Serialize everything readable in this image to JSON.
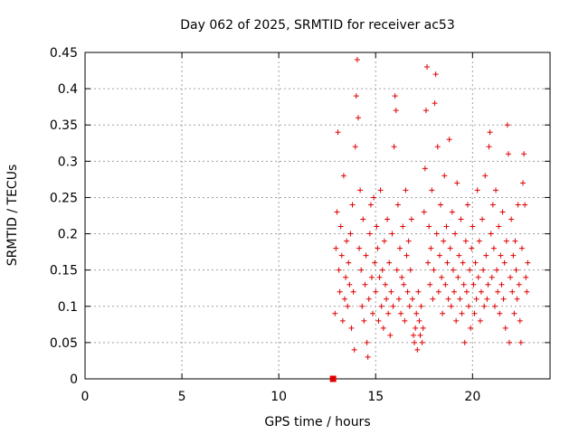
{
  "chart_data": {
    "type": "scatter",
    "title": "Day 062 of 2025, SRMTID for receiver ac53",
    "xlabel": "GPS time / hours",
    "ylabel": "SRMTID / TECUs",
    "xlim": [
      0,
      24
    ],
    "ylim": [
      0,
      0.45
    ],
    "xticks": [
      0,
      5,
      10,
      15,
      20
    ],
    "xtick_labels": [
      "0",
      "5",
      "10",
      "15",
      "20"
    ],
    "yticks": [
      0,
      0.05,
      0.1,
      0.15,
      0.2,
      0.25,
      0.3,
      0.35,
      0.4,
      0.45
    ],
    "ytick_labels": [
      "0",
      "0.05",
      "0.1",
      "0.15",
      "0.2",
      "0.25",
      "0.3",
      "0.35",
      "0.4",
      "0.45"
    ],
    "grid": true,
    "marker": "+",
    "color": "#e00000",
    "gap_marker": {
      "x": 12.8,
      "y": 0
    },
    "series": [
      {
        "name": "SRMTID",
        "points": [
          [
            12.9,
            0.09
          ],
          [
            12.95,
            0.18
          ],
          [
            13.0,
            0.23
          ],
          [
            13.05,
            0.34
          ],
          [
            13.1,
            0.15
          ],
          [
            13.15,
            0.12
          ],
          [
            13.2,
            0.21
          ],
          [
            13.25,
            0.17
          ],
          [
            13.3,
            0.08
          ],
          [
            13.35,
            0.28
          ],
          [
            13.4,
            0.11
          ],
          [
            13.45,
            0.14
          ],
          [
            13.5,
            0.19
          ],
          [
            13.55,
            0.1
          ],
          [
            13.6,
            0.16
          ],
          [
            13.65,
            0.13
          ],
          [
            13.7,
            0.2
          ],
          [
            13.75,
            0.07
          ],
          [
            13.8,
            0.24
          ],
          [
            13.85,
            0.12
          ],
          [
            13.9,
            0.04
          ],
          [
            13.95,
            0.32
          ],
          [
            14.0,
            0.39
          ],
          [
            14.05,
            0.44
          ],
          [
            14.1,
            0.36
          ],
          [
            14.15,
            0.18
          ],
          [
            14.2,
            0.26
          ],
          [
            14.25,
            0.15
          ],
          [
            14.3,
            0.1
          ],
          [
            14.35,
            0.22
          ],
          [
            14.4,
            0.08
          ],
          [
            14.45,
            0.13
          ],
          [
            14.5,
            0.17
          ],
          [
            14.55,
            0.05
          ],
          [
            14.6,
            0.03
          ],
          [
            14.65,
            0.11
          ],
          [
            14.7,
            0.2
          ],
          [
            14.75,
            0.24
          ],
          [
            14.8,
            0.14
          ],
          [
            14.85,
            0.09
          ],
          [
            14.9,
            0.25
          ],
          [
            14.95,
            0.16
          ],
          [
            15.0,
            0.12
          ],
          [
            15.05,
            0.21
          ],
          [
            15.1,
            0.18
          ],
          [
            15.15,
            0.08
          ],
          [
            15.2,
            0.14
          ],
          [
            15.25,
            0.26
          ],
          [
            15.3,
            0.1
          ],
          [
            15.35,
            0.15
          ],
          [
            15.4,
            0.07
          ],
          [
            15.45,
            0.19
          ],
          [
            15.5,
            0.13
          ],
          [
            15.55,
            0.11
          ],
          [
            15.6,
            0.22
          ],
          [
            15.65,
            0.09
          ],
          [
            15.7,
            0.16
          ],
          [
            15.75,
            0.06
          ],
          [
            15.8,
            0.12
          ],
          [
            15.85,
            0.2
          ],
          [
            15.9,
            0.1
          ],
          [
            15.95,
            0.32
          ],
          [
            16.0,
            0.39
          ],
          [
            16.05,
            0.37
          ],
          [
            16.1,
            0.15
          ],
          [
            16.15,
            0.24
          ],
          [
            16.2,
            0.11
          ],
          [
            16.25,
            0.18
          ],
          [
            16.3,
            0.09
          ],
          [
            16.35,
            0.14
          ],
          [
            16.4,
            0.21
          ],
          [
            16.45,
            0.13
          ],
          [
            16.5,
            0.08
          ],
          [
            16.55,
            0.26
          ],
          [
            16.6,
            0.17
          ],
          [
            16.65,
            0.12
          ],
          [
            16.7,
            0.19
          ],
          [
            16.75,
            0.1
          ],
          [
            16.8,
            0.15
          ],
          [
            16.85,
            0.22
          ],
          [
            16.9,
            0.11
          ],
          [
            16.95,
            0.06
          ],
          [
            17.0,
            0.05
          ],
          [
            17.05,
            0.07
          ],
          [
            17.1,
            0.09
          ],
          [
            17.15,
            0.04
          ],
          [
            17.2,
            0.12
          ],
          [
            17.25,
            0.08
          ],
          [
            17.3,
            0.06
          ],
          [
            17.35,
            0.1
          ],
          [
            17.4,
            0.05
          ],
          [
            17.45,
            0.07
          ],
          [
            17.5,
            0.23
          ],
          [
            17.55,
            0.29
          ],
          [
            17.6,
            0.37
          ],
          [
            17.65,
            0.43
          ],
          [
            17.7,
            0.16
          ],
          [
            17.75,
            0.21
          ],
          [
            17.8,
            0.13
          ],
          [
            17.85,
            0.18
          ],
          [
            17.9,
            0.26
          ],
          [
            17.95,
            0.11
          ],
          [
            18.0,
            0.15
          ],
          [
            18.05,
            0.38
          ],
          [
            18.1,
            0.42
          ],
          [
            18.15,
            0.2
          ],
          [
            18.2,
            0.32
          ],
          [
            18.25,
            0.12
          ],
          [
            18.3,
            0.17
          ],
          [
            18.35,
            0.24
          ],
          [
            18.4,
            0.14
          ],
          [
            18.45,
            0.09
          ],
          [
            18.5,
            0.19
          ],
          [
            18.55,
            0.28
          ],
          [
            18.6,
            0.13
          ],
          [
            18.65,
            0.21
          ],
          [
            18.7,
            0.16
          ],
          [
            18.75,
            0.11
          ],
          [
            18.8,
            0.33
          ],
          [
            18.85,
            0.18
          ],
          [
            18.9,
            0.1
          ],
          [
            18.95,
            0.23
          ],
          [
            19.0,
            0.15
          ],
          [
            19.05,
            0.12
          ],
          [
            19.1,
            0.2
          ],
          [
            19.15,
            0.08
          ],
          [
            19.2,
            0.27
          ],
          [
            19.25,
            0.14
          ],
          [
            19.3,
            0.17
          ],
          [
            19.35,
            0.11
          ],
          [
            19.4,
            0.22
          ],
          [
            19.45,
            0.09
          ],
          [
            19.5,
            0.16
          ],
          [
            19.55,
            0.13
          ],
          [
            19.6,
            0.05
          ],
          [
            19.65,
            0.19
          ],
          [
            19.7,
            0.12
          ],
          [
            19.75,
            0.24
          ],
          [
            19.8,
            0.1
          ],
          [
            19.85,
            0.15
          ],
          [
            19.9,
            0.07
          ],
          [
            19.95,
            0.18
          ],
          [
            20.0,
            0.21
          ],
          [
            20.05,
            0.13
          ],
          [
            20.1,
            0.09
          ],
          [
            20.15,
            0.16
          ],
          [
            20.2,
            0.11
          ],
          [
            20.25,
            0.26
          ],
          [
            20.3,
            0.14
          ],
          [
            20.35,
            0.19
          ],
          [
            20.4,
            0.08
          ],
          [
            20.45,
            0.12
          ],
          [
            20.5,
            0.22
          ],
          [
            20.55,
            0.15
          ],
          [
            20.6,
            0.1
          ],
          [
            20.65,
            0.28
          ],
          [
            20.7,
            0.17
          ],
          [
            20.75,
            0.11
          ],
          [
            20.8,
            0.13
          ],
          [
            20.85,
            0.32
          ],
          [
            20.9,
            0.34
          ],
          [
            20.95,
            0.2
          ],
          [
            21.0,
            0.14
          ],
          [
            21.05,
            0.24
          ],
          [
            21.1,
            0.18
          ],
          [
            21.15,
            0.1
          ],
          [
            21.2,
            0.26
          ],
          [
            21.25,
            0.15
          ],
          [
            21.3,
            0.12
          ],
          [
            21.35,
            0.21
          ],
          [
            21.4,
            0.09
          ],
          [
            21.45,
            0.17
          ],
          [
            21.5,
            0.13
          ],
          [
            21.55,
            0.23
          ],
          [
            21.6,
            0.11
          ],
          [
            21.65,
            0.16
          ],
          [
            21.7,
            0.07
          ],
          [
            21.75,
            0.19
          ],
          [
            21.8,
            0.35
          ],
          [
            21.85,
            0.31
          ],
          [
            21.9,
            0.05
          ],
          [
            21.95,
            0.14
          ],
          [
            22.0,
            0.22
          ],
          [
            22.05,
            0.12
          ],
          [
            22.1,
            0.17
          ],
          [
            22.15,
            0.09
          ],
          [
            22.2,
            0.19
          ],
          [
            22.25,
            0.15
          ],
          [
            22.3,
            0.11
          ],
          [
            22.35,
            0.24
          ],
          [
            22.4,
            0.13
          ],
          [
            22.45,
            0.08
          ],
          [
            22.5,
            0.05
          ],
          [
            22.55,
            0.18
          ],
          [
            22.6,
            0.27
          ],
          [
            22.65,
            0.31
          ],
          [
            22.7,
            0.24
          ],
          [
            22.75,
            0.14
          ],
          [
            22.8,
            0.12
          ],
          [
            22.85,
            0.16
          ]
        ]
      }
    ]
  }
}
